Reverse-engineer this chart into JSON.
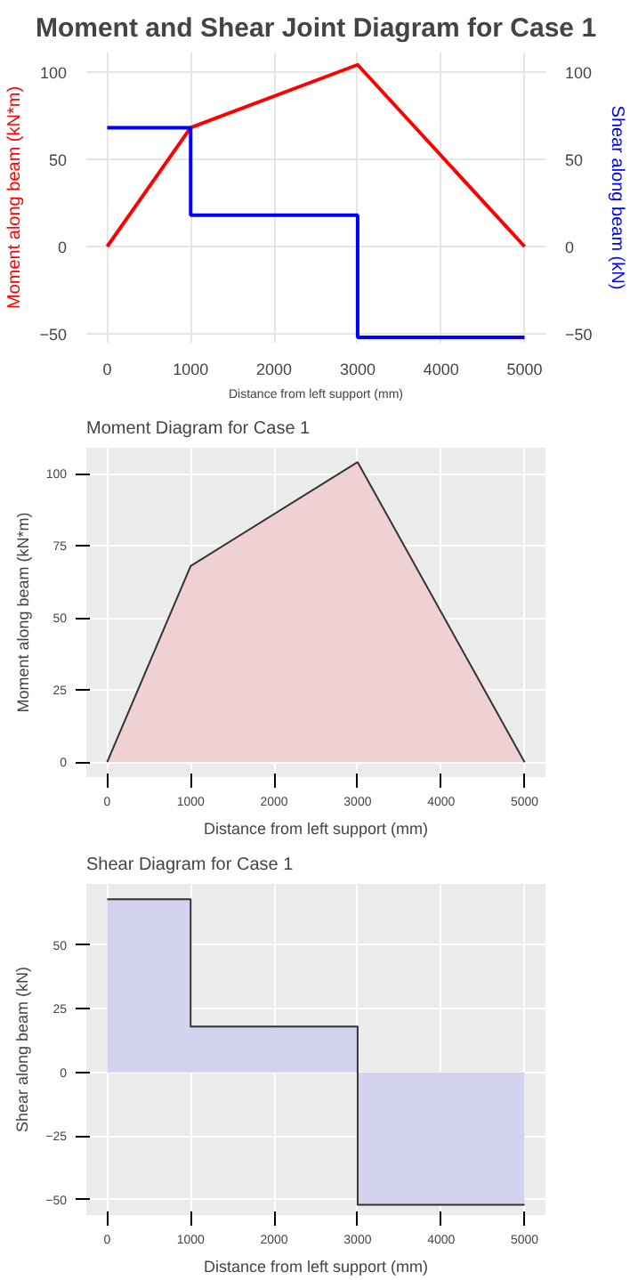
{
  "chart_data": [
    {
      "type": "line",
      "title": "Moment and Shear Joint Diagram for Case 1",
      "xlabel": "Distance from left support (mm)",
      "ylabel": "Moment along beam (kN*m)",
      "y2label": "Shear along beam (kN)",
      "x": [
        0,
        1000,
        3000,
        5000
      ],
      "xlim": [
        -250,
        5250
      ],
      "xticks": [
        0,
        1000,
        2000,
        3000,
        4000,
        5000
      ],
      "ylim": [
        -55,
        111
      ],
      "yticks": [
        -50,
        0,
        50,
        100
      ],
      "y2lim": [
        -55,
        111
      ],
      "y2ticks": [
        -50,
        0,
        50,
        100
      ],
      "grid": true,
      "series": [
        {
          "color": "#ff0000",
          "values": [
            0,
            68,
            104,
            0
          ]
        },
        {
          "type": "step",
          "axis": "y2",
          "color": "#0000ff",
          "values": [
            68,
            18,
            -52,
            -52
          ]
        }
      ]
    },
    {
      "type": "area",
      "title": "Moment Diagram for Case 1",
      "xlabel": "Distance from left support (mm)",
      "ylabel": "Moment along beam (kN*m)",
      "x": [
        0,
        1000,
        3000,
        5000
      ],
      "xlim": [
        -250,
        5250
      ],
      "xticks": [
        0,
        1000,
        2000,
        3000,
        4000,
        5000
      ],
      "ylim": [
        -5.2,
        109
      ],
      "yticks": [
        0,
        25,
        50,
        75,
        100
      ],
      "grid": true,
      "series": [
        {
          "color": "#efd0d3",
          "values": [
            0,
            68,
            104,
            0
          ]
        }
      ]
    },
    {
      "type": "area",
      "title": "Shear Diagram for Case 1",
      "xlabel": "Distance from left support (mm)",
      "ylabel": "Shear along beam (kN)",
      "x": [
        0,
        1000,
        1000,
        3000,
        3000,
        5000
      ],
      "xlim": [
        -250,
        5250
      ],
      "xticks": [
        0,
        1000,
        2000,
        3000,
        4000,
        5000
      ],
      "ylim": [
        -56,
        74
      ],
      "yticks": [
        -50,
        -25,
        0,
        25,
        50
      ],
      "grid": true,
      "series": [
        {
          "color": "#d3d3ef",
          "values": [
            68,
            68,
            18,
            18,
            -52,
            -52
          ]
        }
      ]
    }
  ]
}
